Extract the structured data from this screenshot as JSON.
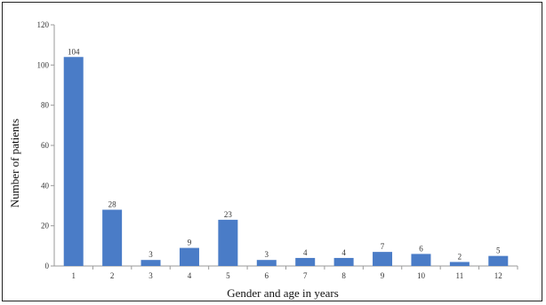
{
  "chart_data": {
    "type": "bar",
    "title": "",
    "xlabel": "Gender and age in years",
    "ylabel": "Number of patients",
    "categories": [
      "1",
      "2",
      "3",
      "4",
      "5",
      "6",
      "7",
      "8",
      "9",
      "10",
      "11",
      "12"
    ],
    "values": [
      104,
      28,
      3,
      9,
      23,
      3,
      4,
      4,
      7,
      6,
      2,
      5
    ],
    "data_labels": [
      "104",
      "28",
      "3",
      "9",
      "23",
      "3",
      "4",
      "4",
      "7",
      "6",
      "2",
      "5"
    ],
    "ylim": [
      0,
      120
    ],
    "yticks": [
      0,
      20,
      40,
      60,
      80,
      100,
      120
    ],
    "grid": false,
    "legend": "none",
    "bar_color": "#4a7cc7"
  }
}
